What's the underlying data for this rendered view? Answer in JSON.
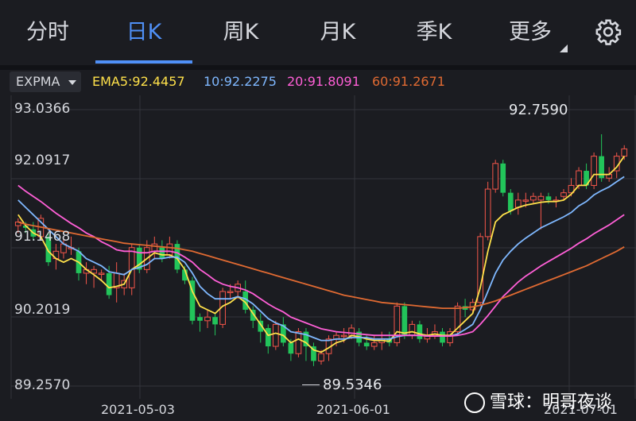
{
  "tabs": [
    {
      "label": "分时"
    },
    {
      "label": "日K"
    },
    {
      "label": "周K"
    },
    {
      "label": "月K"
    },
    {
      "label": "季K"
    },
    {
      "label": "更多"
    }
  ],
  "active_tab": "日K",
  "indicator": {
    "selector": "EXPMA",
    "ema5": "EMA5:92.4457",
    "ema10": "10:92.2275",
    "ema20": "20:91.8091",
    "ema60": "60:91.2671"
  },
  "colors": {
    "up": "#f4564a",
    "down": "#22c45a",
    "ema5": "#ffe14a",
    "ema10": "#7fb8ff",
    "ema20": "#ff5fd7",
    "ema60": "#e06a32",
    "accent": "#4f8ff5",
    "background": "#1b1c21"
  },
  "chart_data": {
    "type": "candlestick",
    "y_ticks": [
      "93.0366",
      "92.0917",
      "91.1468",
      "90.2019",
      "89.2570"
    ],
    "ylim": [
      89.257,
      93.0366
    ],
    "x_ticks": [
      "2021-05-03",
      "2021-06-01",
      "2021-07-01"
    ],
    "max_label": "92.7590",
    "min_label": "89.5346",
    "grid": true,
    "candles": [
      [
        91.45,
        91.5,
        91.35,
        91.55
      ],
      [
        91.45,
        91.42,
        91.35,
        91.5
      ],
      [
        91.4,
        91.3,
        91.25,
        91.5
      ],
      [
        91.3,
        91.55,
        91.25,
        91.6
      ],
      [
        91.3,
        90.95,
        90.9,
        91.35
      ],
      [
        91.0,
        91.1,
        90.85,
        91.2
      ],
      [
        91.08,
        91.2,
        91.0,
        91.3
      ],
      [
        91.15,
        91.15,
        91.05,
        91.3
      ],
      [
        91.1,
        90.8,
        90.7,
        91.15
      ],
      [
        90.8,
        90.85,
        90.65,
        90.95
      ],
      [
        90.8,
        90.85,
        90.6,
        90.9
      ],
      [
        90.8,
        90.8,
        90.7,
        90.85
      ],
      [
        90.8,
        90.5,
        90.45,
        90.9
      ],
      [
        90.6,
        90.8,
        90.4,
        90.95
      ],
      [
        90.6,
        90.7,
        90.5,
        90.8
      ],
      [
        90.6,
        91.15,
        90.5,
        91.2
      ],
      [
        91.15,
        90.85,
        90.8,
        91.2
      ],
      [
        90.85,
        91.15,
        90.8,
        91.25
      ],
      [
        91.1,
        91.2,
        91.0,
        91.3
      ],
      [
        91.15,
        91.0,
        90.95,
        91.25
      ],
      [
        91.05,
        91.2,
        91.0,
        91.3
      ],
      [
        91.2,
        90.85,
        90.8,
        91.25
      ],
      [
        90.85,
        90.7,
        90.65,
        90.9
      ],
      [
        90.7,
        90.15,
        90.1,
        90.75
      ],
      [
        90.2,
        90.15,
        90.0,
        90.25
      ],
      [
        90.15,
        90.2,
        90.05,
        90.3
      ],
      [
        90.2,
        90.1,
        89.95,
        90.25
      ],
      [
        90.1,
        90.55,
        90.05,
        90.6
      ],
      [
        90.55,
        90.55,
        90.45,
        90.65
      ],
      [
        90.55,
        90.65,
        90.45,
        90.7
      ],
      [
        90.55,
        90.3,
        90.25,
        90.7
      ],
      [
        90.3,
        90.15,
        90.05,
        90.35
      ],
      [
        90.15,
        90.0,
        89.85,
        90.25
      ],
      [
        90.05,
        89.8,
        89.7,
        90.1
      ],
      [
        89.8,
        90.1,
        89.75,
        90.15
      ],
      [
        90.1,
        89.85,
        89.8,
        90.2
      ],
      [
        89.85,
        89.7,
        89.6,
        89.9
      ],
      [
        89.7,
        90.0,
        89.65,
        90.05
      ],
      [
        90.0,
        89.8,
        89.6,
        90.05
      ],
      [
        89.8,
        89.6,
        89.53,
        89.85
      ],
      [
        89.6,
        89.7,
        89.55,
        89.75
      ],
      [
        89.7,
        89.9,
        89.6,
        89.95
      ],
      [
        89.9,
        89.95,
        89.8,
        90.0
      ],
      [
        89.95,
        89.95,
        89.85,
        90.05
      ],
      [
        89.95,
        90.05,
        89.9,
        90.1
      ],
      [
        90.0,
        89.85,
        89.8,
        90.05
      ],
      [
        89.85,
        89.8,
        89.75,
        89.95
      ],
      [
        89.8,
        89.85,
        89.75,
        89.95
      ],
      [
        89.85,
        89.9,
        89.75,
        90.0
      ],
      [
        89.9,
        89.85,
        89.8,
        90.0
      ],
      [
        89.85,
        90.35,
        89.8,
        90.4
      ],
      [
        90.35,
        89.95,
        89.9,
        90.4
      ],
      [
        89.95,
        90.1,
        89.9,
        90.15
      ],
      [
        90.1,
        89.9,
        89.85,
        90.15
      ],
      [
        89.9,
        89.95,
        89.85,
        90.05
      ],
      [
        89.95,
        90.0,
        89.9,
        90.1
      ],
      [
        90.0,
        89.85,
        89.8,
        90.05
      ],
      [
        89.85,
        90.0,
        89.8,
        90.05
      ],
      [
        90.0,
        90.35,
        89.95,
        90.4
      ],
      [
        90.35,
        90.3,
        90.2,
        90.45
      ],
      [
        90.3,
        90.4,
        90.25,
        90.45
      ],
      [
        90.4,
        91.3,
        90.35,
        91.35
      ],
      [
        91.3,
        91.95,
        91.25,
        92.05
      ],
      [
        91.95,
        92.3,
        91.9,
        92.35
      ],
      [
        92.3,
        91.9,
        91.85,
        92.35
      ],
      [
        91.9,
        91.65,
        91.6,
        91.95
      ],
      [
        91.7,
        91.8,
        91.6,
        91.9
      ],
      [
        91.8,
        91.8,
        91.7,
        91.9
      ],
      [
        91.8,
        91.85,
        91.75,
        91.9
      ],
      [
        91.8,
        91.85,
        91.4,
        91.9
      ],
      [
        91.85,
        91.8,
        91.75,
        91.9
      ],
      [
        91.8,
        91.8,
        91.7,
        91.85
      ],
      [
        91.85,
        91.9,
        91.8,
        91.95
      ],
      [
        91.9,
        92.0,
        91.85,
        92.1
      ],
      [
        92.0,
        92.2,
        91.95,
        92.25
      ],
      [
        92.2,
        92.0,
        91.95,
        92.3
      ],
      [
        92.0,
        92.4,
        91.95,
        92.45
      ],
      [
        92.4,
        92.1,
        92.05,
        92.7
      ],
      [
        92.1,
        92.15,
        92.05,
        92.25
      ],
      [
        92.2,
        92.4,
        92.1,
        92.45
      ],
      [
        92.4,
        92.5,
        92.35,
        92.55
      ]
    ],
    "series": [
      {
        "name": "EMA5",
        "values": [
          91.6,
          91.45,
          91.35,
          91.3,
          91.1,
          91.0,
          90.95,
          91.0,
          90.95,
          90.85,
          90.78,
          90.7,
          90.6,
          90.62,
          90.65,
          90.85,
          90.92,
          91.0,
          91.08,
          91.05,
          91.05,
          91.0,
          90.85,
          90.55,
          90.35,
          90.3,
          90.25,
          90.35,
          90.4,
          90.48,
          90.4,
          90.25,
          90.1,
          89.95,
          89.98,
          89.95,
          89.85,
          89.9,
          89.85,
          89.75,
          89.72,
          89.78,
          89.85,
          89.88,
          89.95,
          89.93,
          89.9,
          89.88,
          89.88,
          89.87,
          90.0,
          89.98,
          90.0,
          89.97,
          89.95,
          89.97,
          89.95,
          89.95,
          90.05,
          90.15,
          90.25,
          90.6,
          91.1,
          91.5,
          91.6,
          91.65,
          91.7,
          91.73,
          91.75,
          91.77,
          91.78,
          91.78,
          91.8,
          91.88,
          92.0,
          92.0,
          92.15,
          92.15,
          92.15,
          92.25,
          92.4
        ]
      },
      {
        "name": "EMA10",
        "values": [
          91.8,
          91.7,
          91.6,
          91.5,
          91.4,
          91.3,
          91.2,
          91.15,
          91.1,
          91.0,
          90.95,
          90.9,
          90.82,
          90.8,
          90.78,
          90.85,
          90.88,
          90.92,
          91.0,
          91.0,
          91.02,
          91.02,
          90.95,
          90.8,
          90.62,
          90.52,
          90.45,
          90.45,
          90.45,
          90.48,
          90.45,
          90.38,
          90.28,
          90.18,
          90.12,
          90.08,
          90.0,
          89.98,
          89.96,
          89.92,
          89.88,
          89.88,
          89.9,
          89.9,
          89.92,
          89.92,
          89.92,
          89.9,
          89.9,
          89.9,
          89.93,
          89.95,
          89.95,
          89.95,
          89.94,
          89.94,
          89.94,
          89.94,
          89.97,
          90.03,
          90.1,
          90.3,
          90.55,
          90.8,
          90.98,
          91.1,
          91.2,
          91.28,
          91.35,
          91.42,
          91.47,
          91.52,
          91.57,
          91.63,
          91.72,
          91.78,
          91.87,
          91.93,
          91.98,
          92.05,
          92.12
        ]
      },
      {
        "name": "EMA20",
        "values": [
          92.0,
          91.92,
          91.85,
          91.78,
          91.7,
          91.62,
          91.55,
          91.48,
          91.42,
          91.35,
          91.3,
          91.23,
          91.18,
          91.12,
          91.1,
          91.1,
          91.08,
          91.08,
          91.1,
          91.1,
          91.1,
          91.08,
          91.02,
          90.95,
          90.85,
          90.78,
          90.7,
          90.65,
          90.62,
          90.6,
          90.57,
          90.52,
          90.45,
          90.38,
          90.32,
          90.27,
          90.2,
          90.16,
          90.12,
          90.08,
          90.04,
          90.02,
          90.0,
          89.99,
          89.98,
          89.97,
          89.96,
          89.95,
          89.95,
          89.95,
          89.95,
          89.95,
          89.95,
          89.95,
          89.94,
          89.94,
          89.94,
          89.94,
          89.95,
          89.97,
          90.0,
          90.1,
          90.22,
          90.35,
          90.48,
          90.58,
          90.68,
          90.76,
          90.83,
          90.9,
          90.96,
          91.02,
          91.08,
          91.14,
          91.21,
          91.27,
          91.34,
          91.4,
          91.46,
          91.53,
          91.6
        ]
      },
      {
        "name": "EMA60",
        "values": [
          91.5,
          91.47,
          91.45,
          91.43,
          91.41,
          91.39,
          91.37,
          91.35,
          91.33,
          91.31,
          91.29,
          91.27,
          91.25,
          91.23,
          91.21,
          91.2,
          91.19,
          91.18,
          91.17,
          91.16,
          91.15,
          91.14,
          91.12,
          91.1,
          91.07,
          91.04,
          91.01,
          90.98,
          90.95,
          90.92,
          90.89,
          90.86,
          90.83,
          90.8,
          90.77,
          90.74,
          90.71,
          90.68,
          90.65,
          90.62,
          90.59,
          90.56,
          90.53,
          90.5,
          90.48,
          90.46,
          90.44,
          90.42,
          90.4,
          90.39,
          90.38,
          90.37,
          90.36,
          90.35,
          90.34,
          90.33,
          90.32,
          90.32,
          90.32,
          90.33,
          90.34,
          90.36,
          90.39,
          90.42,
          90.46,
          90.5,
          90.54,
          90.58,
          90.62,
          90.66,
          90.7,
          90.74,
          90.78,
          90.82,
          90.86,
          90.9,
          90.95,
          91.0,
          91.05,
          91.1,
          91.16
        ]
      }
    ]
  },
  "watermark": {
    "brand": "雪球：明哥夜谈"
  }
}
